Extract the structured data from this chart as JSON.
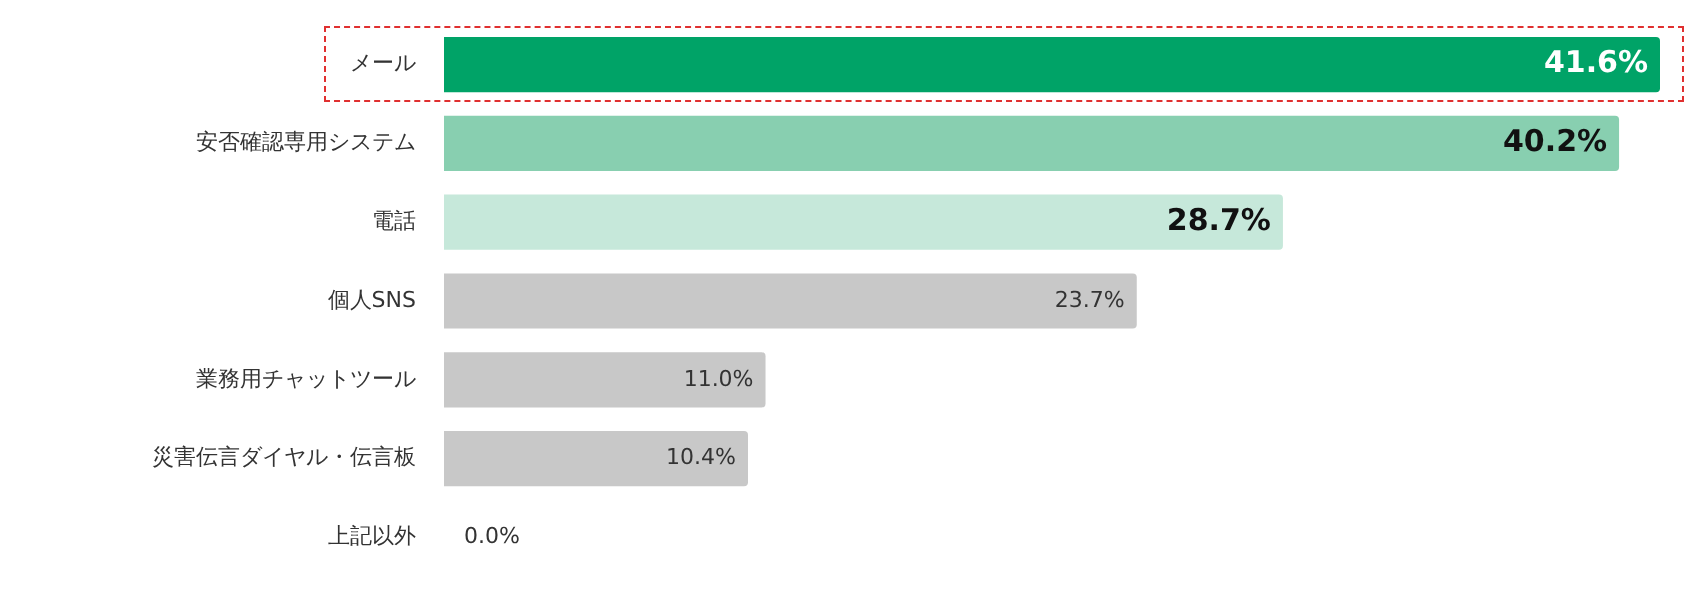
{
  "chart_data": {
    "type": "bar",
    "orientation": "horizontal",
    "categories": [
      "メール",
      "安否確認専用システム",
      "電話",
      "個人SNS",
      "業務用チャットツール",
      "災害伝言ダイヤル・伝言板",
      "上記以外"
    ],
    "values": [
      41.6,
      40.2,
      28.7,
      23.7,
      11.0,
      10.4,
      0.0
    ],
    "value_labels": [
      "41.6%",
      "40.2%",
      "28.7%",
      "23.7%",
      "11.0%",
      "10.4%",
      "0.0%"
    ],
    "colors": [
      "#00a367",
      "#88cfb0",
      "#c6e8da",
      "#c8c8c8",
      "#c8c8c8",
      "#c8c8c8",
      "#c8c8c8"
    ],
    "legend": false
  }
}
